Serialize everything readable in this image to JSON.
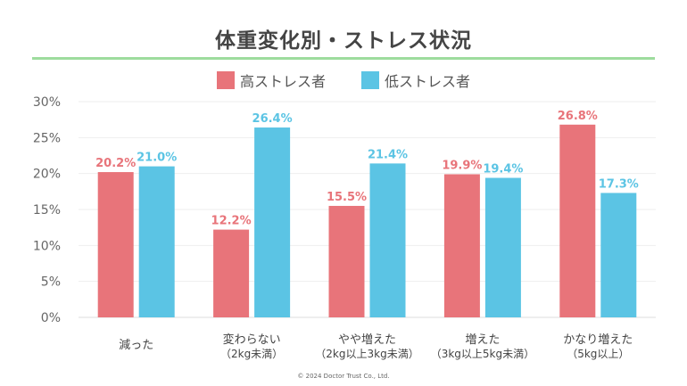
{
  "chart_data": {
    "type": "bar",
    "title": "体重変化別・ストレス状況",
    "xlabel": "",
    "ylabel": "",
    "ylim": [
      0,
      30
    ],
    "yticks": [
      0,
      5,
      10,
      15,
      20,
      25,
      30
    ],
    "ytick_labels": [
      "0%",
      "5%",
      "10%",
      "15%",
      "20%",
      "25%",
      "30%"
    ],
    "grid": true,
    "legend_position": "top-center",
    "categories": [
      {
        "line1": "減った",
        "line2": ""
      },
      {
        "line1": "変わらない",
        "line2": "（2kg未満）"
      },
      {
        "line1": "やや増えた",
        "line2": "（2kg以上3kg未満）"
      },
      {
        "line1": "増えた",
        "line2": "（3kg以上5kg未満）"
      },
      {
        "line1": "かなり増えた",
        "line2": "（5kg以上）"
      }
    ],
    "series": [
      {
        "name": "高ストレス者",
        "color": "#e8747a",
        "values": [
          20.2,
          12.2,
          15.5,
          19.9,
          26.8
        ],
        "labels": [
          "20.2%",
          "12.2%",
          "15.5%",
          "19.9%",
          "26.8%"
        ]
      },
      {
        "name": "低ストレス者",
        "color": "#5bc4e4",
        "values": [
          21.0,
          26.4,
          21.4,
          19.4,
          17.3
        ],
        "labels": [
          "21.0%",
          "26.4%",
          "21.4%",
          "19.4%",
          "17.3%"
        ]
      }
    ]
  },
  "copyright": "©  2024 Doctor Trust Co., Ltd."
}
